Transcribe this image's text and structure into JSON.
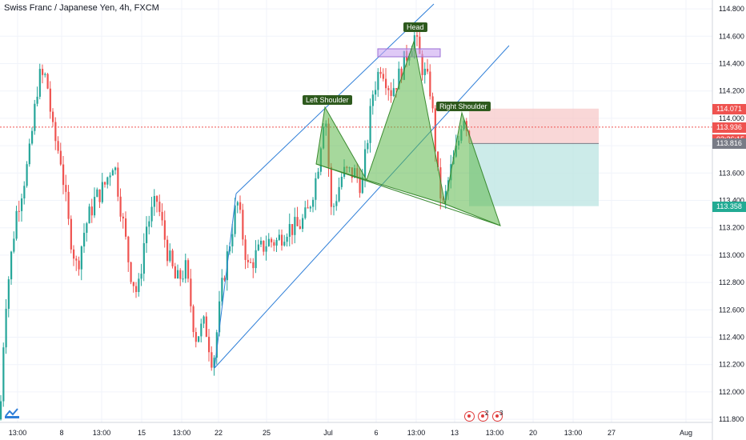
{
  "title": "Swiss Franc / Japanese Yen, 4h, FXCM",
  "colors": {
    "up": "#26a69a",
    "down": "#ef5350",
    "channel": "#2f7fd8",
    "pattern_fill": "#5cb84a",
    "pattern_label_bg": "#2e5a1e",
    "stop_zone": "#f7c9c9",
    "target_zone": "#bfe6e3",
    "head_box": "#c9a5f0"
  },
  "chart_data": {
    "type": "candlestick",
    "instrument": "Swiss Franc / Japanese Yen",
    "interval": "4h",
    "source": "FXCM",
    "ylim": [
      111.7,
      114.95
    ],
    "y_ticks": [
      "111.800",
      "112.000",
      "112.200",
      "112.400",
      "112.600",
      "112.800",
      "113.000",
      "113.200",
      "113.400",
      "113.600",
      "113.800",
      "114.000",
      "114.200",
      "114.400",
      "114.600",
      "114.800"
    ],
    "x_ticks": [
      "13:00",
      "8",
      "13:00",
      "15",
      "13:00",
      "22",
      "25",
      "Jul",
      "6",
      "13:00",
      "13",
      "13:00",
      "20",
      "13:00",
      "27",
      "Aug"
    ],
    "price_labels": [
      {
        "value": "114.071",
        "price": 114.071,
        "color": "#ef5350"
      },
      {
        "value": "113.936",
        "price": 113.936,
        "color": "#ef5350"
      },
      {
        "value": "02:36:15",
        "price": 113.85,
        "color": "#ef5350"
      },
      {
        "value": "113.816",
        "price": 113.816,
        "color": "#787b86"
      },
      {
        "value": "113.358",
        "price": 113.358,
        "color": "#22ab94"
      }
    ],
    "current_price": 113.936,
    "annotations": [
      {
        "text": "Left Shoulder",
        "x": "1 Jul",
        "price": 114.13
      },
      {
        "text": "Head",
        "x": "9 Jul",
        "price": 114.66
      },
      {
        "text": "Right Shoulder",
        "x": "14 Jul",
        "price": 114.08
      }
    ],
    "position_tool": {
      "entry": 113.816,
      "stop": 114.071,
      "target": 113.358
    },
    "events": [
      {
        "label": ""
      },
      {
        "label": "2"
      },
      {
        "label": "3"
      }
    ]
  }
}
